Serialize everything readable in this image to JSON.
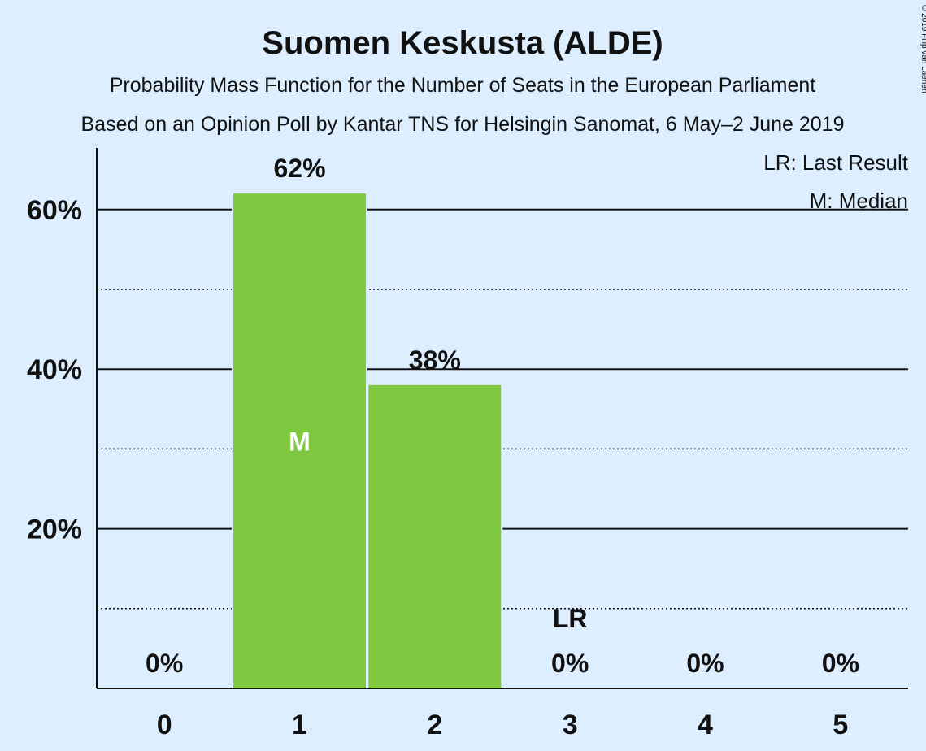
{
  "chart_data": {
    "type": "bar",
    "title": "Suomen Keskusta (ALDE)",
    "subtitle": "Probability Mass Function for the Number of Seats in the European Parliament",
    "subtitle2": "Based on an Opinion Poll by Kantar TNS for Helsingin Sanomat, 6 May–2 June 2019",
    "copyright": "© 2019 Filip van Laenen",
    "categories": [
      "0",
      "1",
      "2",
      "3",
      "4",
      "5"
    ],
    "values": [
      0,
      62,
      38,
      0,
      0,
      0
    ],
    "value_labels": [
      "0%",
      "62%",
      "38%",
      "0%",
      "0%",
      "0%"
    ],
    "ylim": [
      0,
      68
    ],
    "yticks": [
      20,
      40,
      60
    ],
    "ytick_labels": [
      "20%",
      "40%",
      "60%"
    ],
    "minor_gridlines": [
      10,
      30,
      50
    ],
    "median_index": 1,
    "median_marker": "M",
    "last_result_index": 3,
    "last_result_marker": "LR",
    "legend": [
      "LR: Last Result",
      "M: Median"
    ],
    "legend_position": "top-right",
    "bar_color": "#80c840",
    "background_color": "#ddeeff"
  }
}
